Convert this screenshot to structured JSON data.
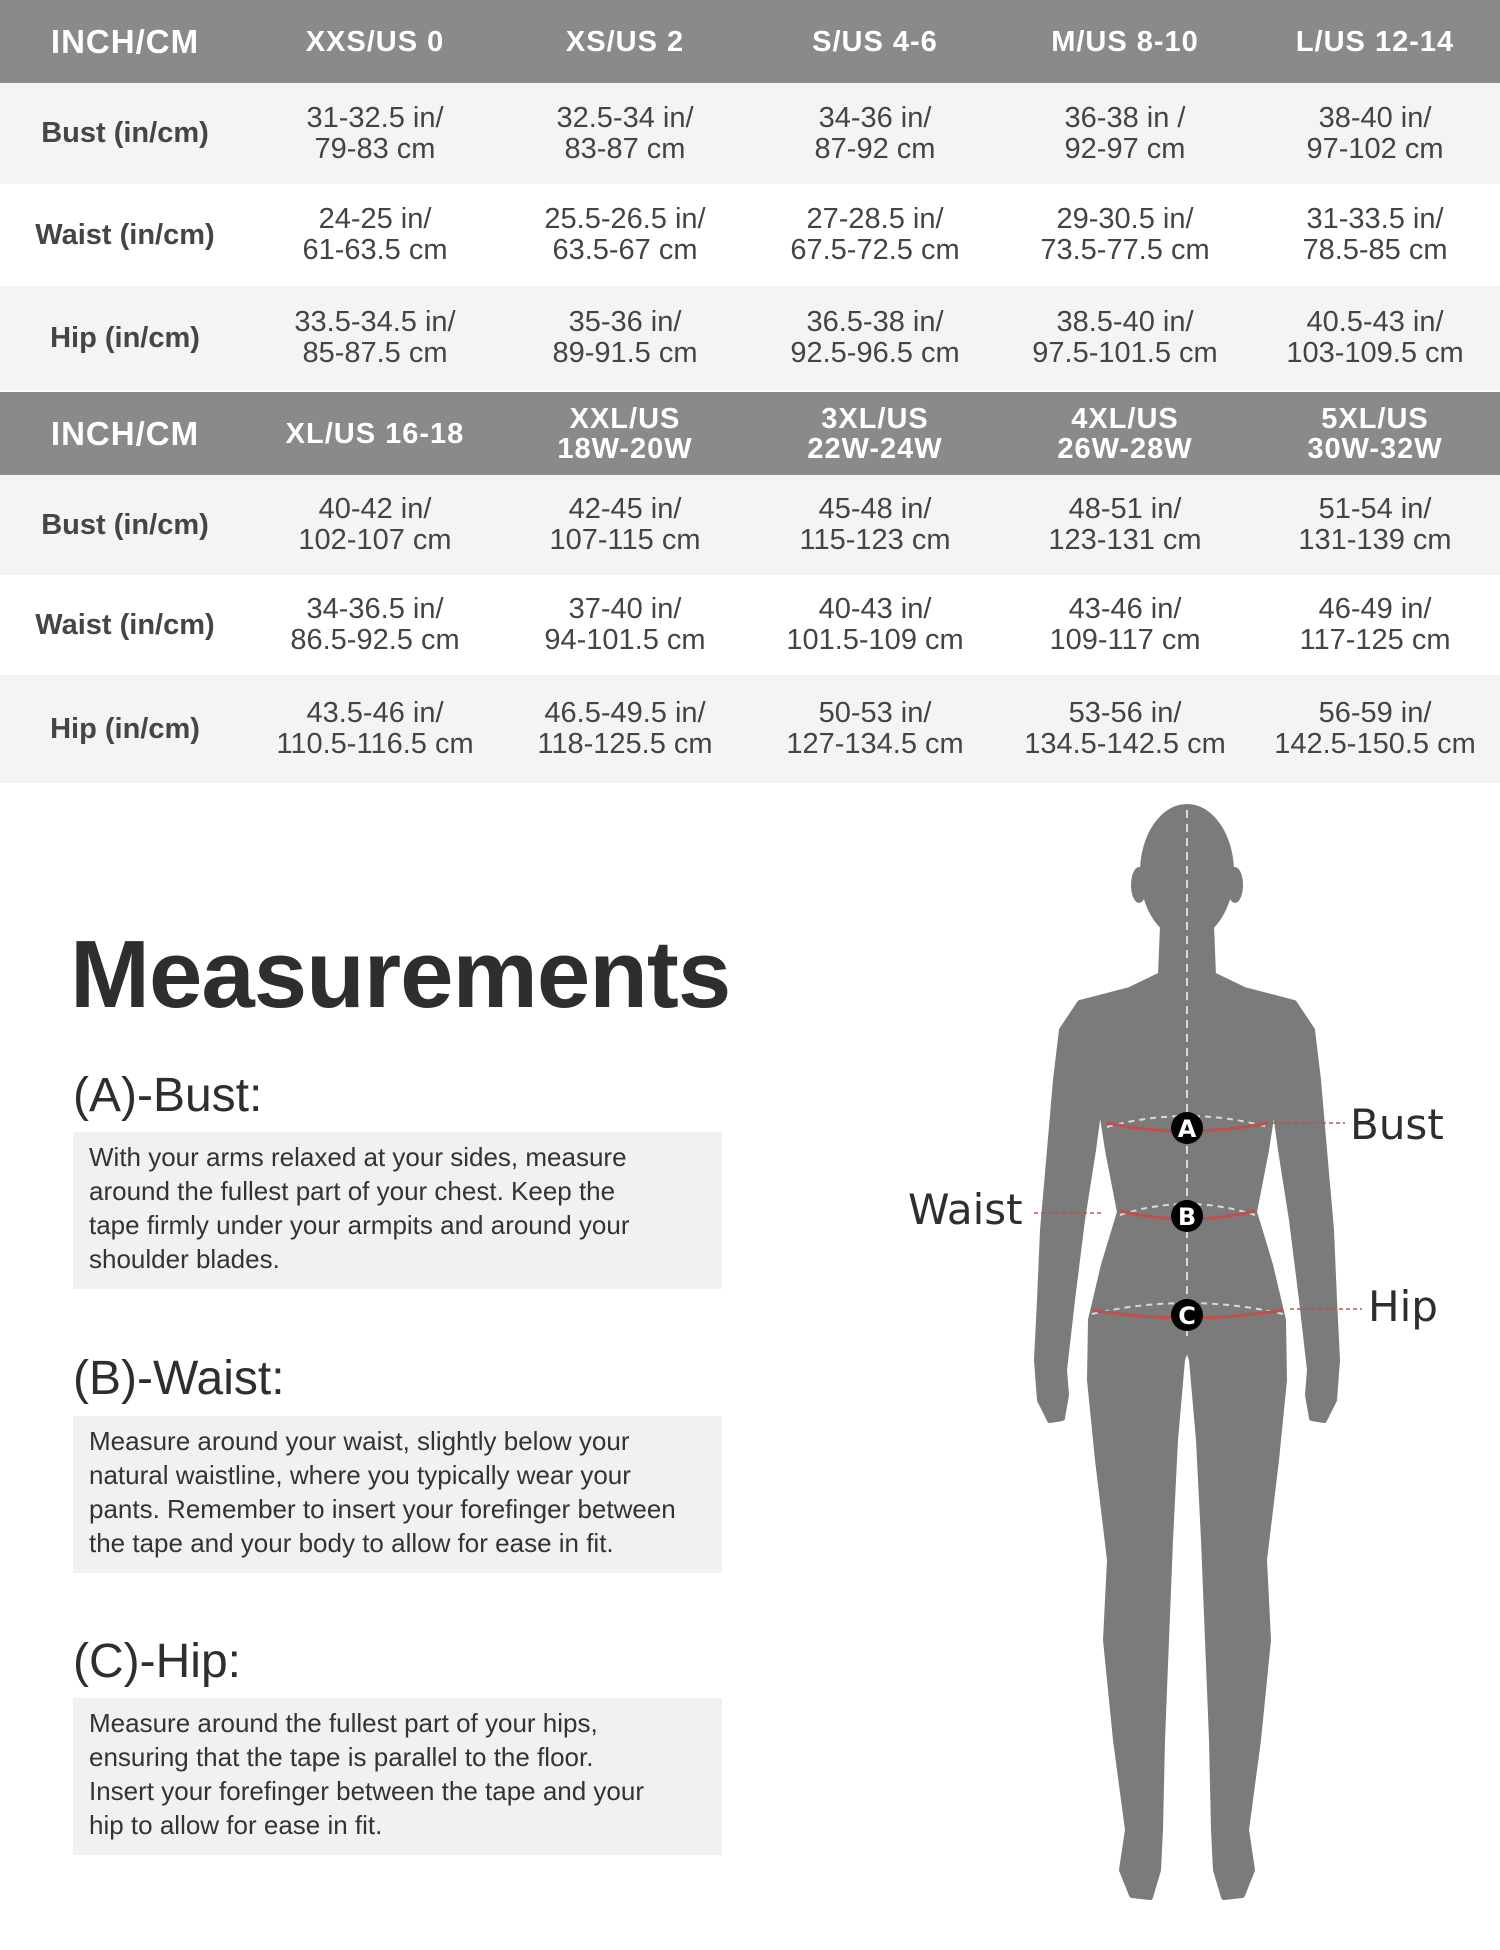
{
  "tables": [
    {
      "header": [
        "INCH/CM",
        "XXS/US 0",
        "XS/US 2",
        "S/US 4-6",
        "M/US 8-10",
        "L/US 12-14"
      ],
      "rows": [
        {
          "label": "Bust (in/cm)",
          "cells": [
            "31-32.5 in/\n79-83 cm",
            "32.5-34 in/\n83-87 cm",
            "34-36 in/\n87-92 cm",
            "36-38 in /\n92-97 cm",
            "38-40 in/\n97-102 cm"
          ]
        },
        {
          "label": "Waist (in/cm)",
          "cells": [
            "24-25 in/\n61-63.5 cm",
            "25.5-26.5 in/\n63.5-67 cm",
            "27-28.5 in/\n67.5-72.5 cm",
            "29-30.5 in/\n73.5-77.5 cm",
            "31-33.5 in/\n78.5-85 cm"
          ]
        },
        {
          "label": "Hip (in/cm)",
          "cells": [
            "33.5-34.5 in/\n85-87.5 cm",
            "35-36 in/\n89-91.5 cm",
            "36.5-38 in/\n92.5-96.5 cm",
            "38.5-40 in/\n97.5-101.5 cm",
            "40.5-43 in/\n103-109.5 cm"
          ]
        }
      ]
    },
    {
      "header": [
        "INCH/CM",
        "XL/US 16-18",
        "XXL/US\n18W-20W",
        "3XL/US\n22W-24W",
        "4XL/US\n26W-28W",
        "5XL/US\n30W-32W"
      ],
      "rows": [
        {
          "label": "Bust (in/cm)",
          "cells": [
            "40-42 in/\n102-107 cm",
            "42-45 in/\n107-115 cm",
            "45-48 in/\n115-123 cm",
            "48-51 in/\n123-131 cm",
            "51-54 in/\n131-139 cm"
          ]
        },
        {
          "label": "Waist (in/cm)",
          "cells": [
            "34-36.5 in/\n86.5-92.5 cm",
            "37-40 in/\n94-101.5 cm",
            "40-43 in/\n101.5-109 cm",
            "43-46 in/\n109-117 cm",
            "46-49 in/\n117-125 cm"
          ]
        },
        {
          "label": "Hip (in/cm)",
          "cells": [
            "43.5-46 in/\n110.5-116.5 cm",
            "46.5-49.5 in/\n118-125.5 cm",
            "50-53 in/\n127-134.5 cm",
            "53-56 in/\n134.5-142.5 cm",
            "56-59 in/\n142.5-150.5 cm"
          ]
        }
      ]
    }
  ],
  "measurements": {
    "title": "Measurements",
    "sections": [
      {
        "heading": "(A)-Bust:",
        "lines": [
          "With your arms relaxed at your sides, measure",
          "around the fullest part of your chest. Keep the",
          "tape firmly under your armpits and around your",
          "shoulder blades."
        ]
      },
      {
        "heading": "(B)-Waist:",
        "lines": [
          "Measure around your waist, slightly below your",
          "natural waistline, where you typically wear your",
          "pants. Remember to insert your forefinger between",
          "the tape and your body to allow for ease in fit."
        ]
      },
      {
        "heading": "(C)-Hip:",
        "lines": [
          "Measure around the fullest part of your hips,",
          "ensuring that the tape is parallel to the floor.",
          "Insert your forefinger between the tape and your",
          "hip to allow for ease in fit."
        ]
      }
    ]
  },
  "figure": {
    "labels": {
      "bust": "Bust",
      "waist": "Waist",
      "hip": "Hip"
    },
    "markers": {
      "bust": "A",
      "waist": "B",
      "hip": "C"
    }
  },
  "colors": {
    "header_bg": "#8a8a8a",
    "row_alt_bg": "#f4f4f4",
    "silhouette": "#7b7b7b",
    "tape_line": "#c0504d",
    "text": "#2e2e2e"
  }
}
